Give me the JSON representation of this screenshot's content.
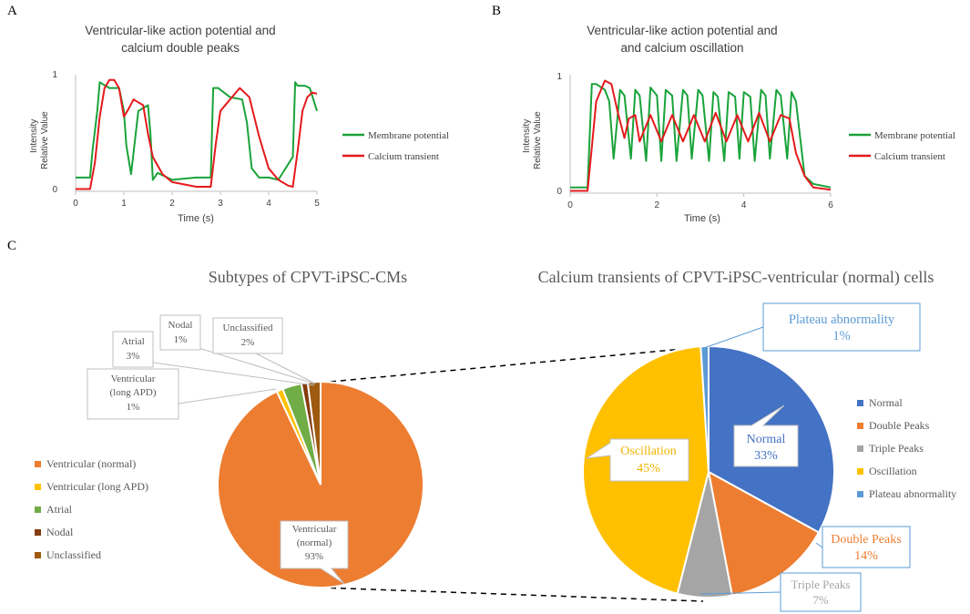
{
  "panels": {
    "A": {
      "letter": "A",
      "title_lines": [
        "Ventricular-like action potential and",
        "calcium double peaks"
      ],
      "chart_data": {
        "type": "line",
        "title": "Ventricular-like action potential and calcium double peaks",
        "xlabel": "Time (s)",
        "ylabel_lines": [
          "Intensity",
          "Relative Value"
        ],
        "xlim": [
          0,
          5
        ],
        "ylim": [
          0,
          1
        ],
        "xticks": [
          "0",
          "1",
          "2",
          "3",
          "4",
          "5"
        ],
        "yticks": [
          "0",
          "1"
        ],
        "legend": [
          "Membrane potential",
          "Calcium transient"
        ],
        "series": [
          {
            "name": "Membrane potential",
            "color": "#1aa33a",
            "x": [
              0,
              0.3,
              0.35,
              0.45,
              0.5,
              0.7,
              0.9,
              1.0,
              1.05,
              1.15,
              1.3,
              1.5,
              1.55,
              1.6,
              1.7,
              1.9,
              2.0,
              2.5,
              2.8,
              2.85,
              2.95,
              3.2,
              3.45,
              3.55,
              3.65,
              3.8,
              4.0,
              4.2,
              4.5,
              4.55,
              4.6,
              4.75,
              4.85,
              5.0
            ],
            "y": [
              0.12,
              0.12,
              0.35,
              0.7,
              0.95,
              0.9,
              0.9,
              0.7,
              0.4,
              0.15,
              0.7,
              0.75,
              0.5,
              0.1,
              0.16,
              0.12,
              0.1,
              0.12,
              0.12,
              0.9,
              0.9,
              0.82,
              0.8,
              0.6,
              0.2,
              0.12,
              0.12,
              0.1,
              0.3,
              0.95,
              0.92,
              0.92,
              0.9,
              0.7
            ]
          },
          {
            "name": "Calcium transient",
            "color": "#e41a1c",
            "x": [
              0,
              0.3,
              0.4,
              0.5,
              0.6,
              0.7,
              0.8,
              0.9,
              1.0,
              1.1,
              1.2,
              1.4,
              1.5,
              1.6,
              1.8,
              2.0,
              2.5,
              2.8,
              2.9,
              3.0,
              3.2,
              3.4,
              3.6,
              3.8,
              4.0,
              4.2,
              4.4,
              4.5,
              4.6,
              4.7,
              4.8,
              4.9,
              5.0
            ],
            "y": [
              0.02,
              0.02,
              0.25,
              0.65,
              0.9,
              0.97,
              0.97,
              0.9,
              0.65,
              0.72,
              0.8,
              0.75,
              0.5,
              0.3,
              0.15,
              0.08,
              0.04,
              0.04,
              0.4,
              0.7,
              0.8,
              0.9,
              0.82,
              0.48,
              0.2,
              0.1,
              0.05,
              0.04,
              0.35,
              0.7,
              0.82,
              0.86,
              0.85
            ]
          }
        ]
      }
    },
    "B": {
      "letter": "B",
      "title_lines": [
        "Ventricular-like action potential and",
        "and calcium oscillation"
      ],
      "chart_data": {
        "type": "line",
        "title": "Ventricular-like action potential and and calcium oscillation",
        "xlabel": "Time (s)",
        "ylabel_lines": [
          "Intensity",
          "Relative Value"
        ],
        "xlim": [
          0,
          6
        ],
        "ylim": [
          0,
          1
        ],
        "xticks": [
          "0",
          "2",
          "4",
          "6"
        ],
        "yticks": [
          "0",
          "1"
        ],
        "legend": [
          "Membrane potential",
          "Calcium transient"
        ],
        "series": [
          {
            "name": "Membrane potential",
            "color": "#1aa33a",
            "x": [
              0,
              0.4,
              0.5,
              0.6,
              0.8,
              0.9,
              1.0,
              1.15,
              1.25,
              1.4,
              1.5,
              1.6,
              1.75,
              1.85,
              2.0,
              2.1,
              2.2,
              2.35,
              2.45,
              2.6,
              2.7,
              2.8,
              2.95,
              3.05,
              3.2,
              3.3,
              3.4,
              3.55,
              3.65,
              3.8,
              3.9,
              4.0,
              4.15,
              4.25,
              4.4,
              4.5,
              4.6,
              4.75,
              4.85,
              5.0,
              5.1,
              5.2,
              5.4,
              5.6,
              6.0
            ],
            "y": [
              0.05,
              0.05,
              0.95,
              0.95,
              0.9,
              0.8,
              0.3,
              0.9,
              0.85,
              0.3,
              0.9,
              0.85,
              0.28,
              0.92,
              0.85,
              0.28,
              0.9,
              0.85,
              0.28,
              0.9,
              0.85,
              0.3,
              0.9,
              0.85,
              0.28,
              0.88,
              0.84,
              0.28,
              0.88,
              0.84,
              0.3,
              0.88,
              0.84,
              0.28,
              0.9,
              0.85,
              0.3,
              0.9,
              0.85,
              0.3,
              0.88,
              0.8,
              0.15,
              0.08,
              0.05
            ]
          },
          {
            "name": "Calcium transient",
            "color": "#e41a1c",
            "x": [
              0,
              0.4,
              0.5,
              0.6,
              0.8,
              0.95,
              1.1,
              1.25,
              1.35,
              1.5,
              1.6,
              1.85,
              2.1,
              2.35,
              2.6,
              2.85,
              3.1,
              3.35,
              3.6,
              3.85,
              4.1,
              4.35,
              4.6,
              4.85,
              5.05,
              5.2,
              5.4,
              5.6,
              6.0
            ],
            "y": [
              0.02,
              0.02,
              0.4,
              0.8,
              0.98,
              0.95,
              0.7,
              0.48,
              0.65,
              0.68,
              0.45,
              0.68,
              0.45,
              0.68,
              0.45,
              0.68,
              0.45,
              0.7,
              0.45,
              0.68,
              0.45,
              0.7,
              0.45,
              0.68,
              0.65,
              0.35,
              0.15,
              0.05,
              0.03
            ]
          }
        ]
      }
    },
    "C": {
      "letter": "C",
      "left_title": "Subtypes of CPVT-iPSC-CMs",
      "right_title": "Calcium transients of CPVT-iPSC-ventricular (normal) cells",
      "pie_left": {
        "chart_data": {
          "type": "pie",
          "title": "Subtypes of CPVT-iPSC-CMs",
          "slices": [
            {
              "label": "Ventricular (normal)",
              "value": 93,
              "color": "#ed7d31"
            },
            {
              "label": "Ventricular (long APD)",
              "value": 1,
              "color": "#ffc000"
            },
            {
              "label": "Atrial",
              "value": 3,
              "color": "#70ad47"
            },
            {
              "label": "Nodal",
              "value": 1,
              "color": "#843c0c"
            },
            {
              "label": "Unclassified",
              "value": 2,
              "color": "#9e5a0f"
            }
          ]
        },
        "callouts": {
          "ventricular_normal": [
            "Ventricular",
            "(normal)",
            "93%"
          ],
          "ventricular_long": [
            "Ventricular",
            "(long APD)",
            "1%"
          ],
          "atrial": [
            "Atrial",
            "3%"
          ],
          "nodal": [
            "Nodal",
            "1%"
          ],
          "unclassified": [
            "Unclassified",
            "2%"
          ]
        }
      },
      "pie_right": {
        "chart_data": {
          "type": "pie",
          "title": "Calcium transients of CPVT-iPSC-ventricular (normal) cells",
          "slices": [
            {
              "label": "Normal",
              "value": 33,
              "color": "#4472c4"
            },
            {
              "label": "Double Peaks",
              "value": 14,
              "color": "#ed7d31"
            },
            {
              "label": "Triple Peaks",
              "value": 7,
              "color": "#a5a5a5"
            },
            {
              "label": "Oscillation",
              "value": 45,
              "color": "#ffc000"
            },
            {
              "label": "Plateau abnormality",
              "value": 1,
              "color": "#5b9bd5"
            }
          ]
        },
        "callouts": {
          "normal": [
            "Normal",
            "33%"
          ],
          "double_peaks": [
            "Double Peaks",
            "14%"
          ],
          "triple_peaks": [
            "Triple Peaks",
            "7%"
          ],
          "oscillation": [
            "Oscillation",
            "45%"
          ],
          "plateau": [
            "Plateau abnormality",
            "1%"
          ]
        }
      }
    }
  }
}
